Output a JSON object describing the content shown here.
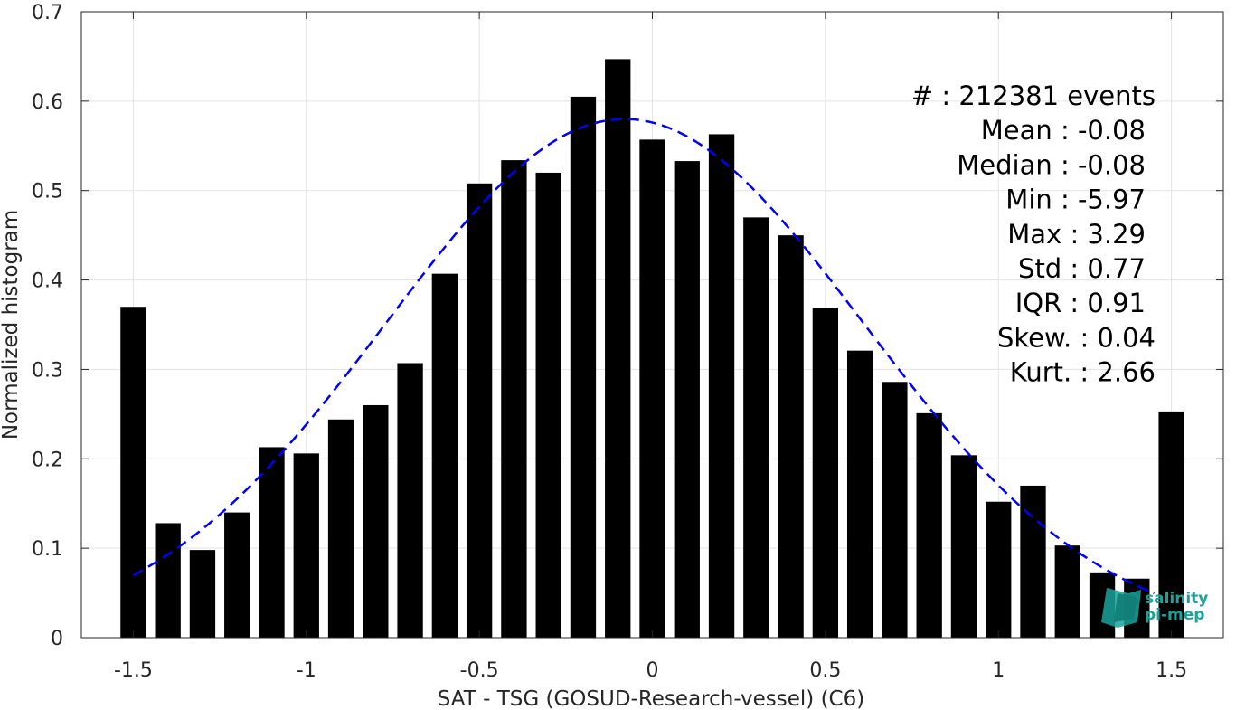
{
  "chart_data": {
    "type": "bar",
    "title": "",
    "xlabel": "SAT - TSG (GOSUD-Research-vessel) (C6)",
    "ylabel": "Normalized histogram",
    "xlim": [
      -1.65,
      1.65
    ],
    "ylim": [
      0,
      0.7
    ],
    "grid": true,
    "bar_width": 0.074,
    "xticks": [
      -1.5,
      -1,
      -0.5,
      0,
      0.5,
      1,
      1.5
    ],
    "xtick_labels": [
      "-1.5",
      "-1",
      "-0.5",
      "0",
      "0.5",
      "1",
      "1.5"
    ],
    "yticks": [
      0,
      0.1,
      0.2,
      0.3,
      0.4,
      0.5,
      0.6,
      0.7
    ],
    "ytick_labels": [
      "0",
      "0.1",
      "0.2",
      "0.3",
      "0.4",
      "0.5",
      "0.6",
      "0.7"
    ],
    "x": [
      -1.5,
      -1.4,
      -1.3,
      -1.2,
      -1.1,
      -1.0,
      -0.9,
      -0.8,
      -0.7,
      -0.6,
      -0.5,
      -0.4,
      -0.3,
      -0.2,
      -0.1,
      0.0,
      0.1,
      0.2,
      0.3,
      0.4,
      0.5,
      0.6,
      0.7,
      0.8,
      0.9,
      1.0,
      1.1,
      1.2,
      1.3,
      1.4,
      1.5
    ],
    "values": [
      0.37,
      0.128,
      0.098,
      0.14,
      0.213,
      0.206,
      0.244,
      0.26,
      0.307,
      0.407,
      0.508,
      0.534,
      0.52,
      0.605,
      0.647,
      0.557,
      0.533,
      0.563,
      0.47,
      0.45,
      0.369,
      0.321,
      0.286,
      0.251,
      0.204,
      0.152,
      0.17,
      0.103,
      0.073,
      0.066,
      0.253
    ],
    "bar_color": "#000000",
    "fit": {
      "type": "gaussian",
      "style": "dashed",
      "color": "#0000ff",
      "mean": -0.08,
      "std": 0.69,
      "peak": 0.58,
      "xrange": [
        -1.5,
        1.45
      ]
    },
    "stats_box": {
      "placement": "top-right",
      "lines": [
        "#  : 212381 events",
        "Mean : -0.08",
        "Median : -0.08",
        "Min : -5.97",
        "Max : 3.29",
        "Std : 0.77",
        "IQR : 0.91",
        "Skew. : 0.04",
        "Kurt. : 2.66"
      ]
    }
  },
  "logo": {
    "line1": "salinity",
    "line2": "pi-mep",
    "placement": "bottom-right",
    "color": "#1aa39a"
  }
}
